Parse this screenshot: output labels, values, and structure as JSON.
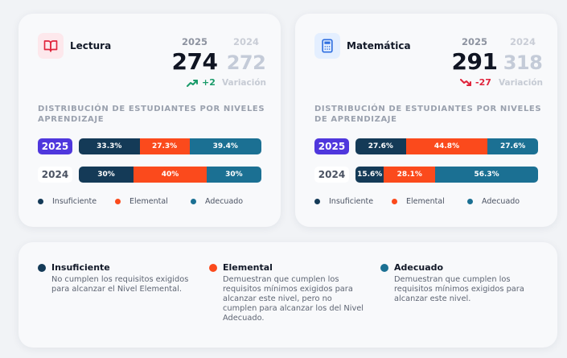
{
  "lectura": {
    "title": "Lectura",
    "icon": "book-icon",
    "year_current": "2025",
    "year_previous": "2024",
    "score_current": "274",
    "score_previous": "272",
    "delta": "+2",
    "delta_direction": "up",
    "delta_color": "#1a9b6a",
    "variation_label": "Variación",
    "distribution_title": "DISTRIBUCIÓN DE ESTUDIANTES POR NIVELES APRENDIZAJE",
    "rows": [
      {
        "year": "2025",
        "insuficiente": "33.3%",
        "elemental": "27.3%",
        "adecuado": "39.4%"
      },
      {
        "year": "2024",
        "insuficiente": "30%",
        "elemental": "40%",
        "adecuado": "30%"
      }
    ],
    "row_values": [
      {
        "insuficiente": 33.3,
        "elemental": 27.3,
        "adecuado": 39.4
      },
      {
        "insuficiente": 30,
        "elemental": 40,
        "adecuado": 30
      }
    ]
  },
  "matematica": {
    "title": "Matemática",
    "icon": "calculator-icon",
    "year_current": "2025",
    "year_previous": "2024",
    "score_current": "291",
    "score_previous": "318",
    "delta": "-27",
    "delta_direction": "down",
    "delta_color": "#e0243c",
    "variation_label": "Variación",
    "distribution_title": "DISTRIBUCIÓN DE ESTUDIANTES POR NIVELES DE APRENDIZAJE",
    "rows": [
      {
        "year": "2025",
        "insuficiente": "27.6%",
        "elemental": "44.8%",
        "adecuado": "27.6%"
      },
      {
        "year": "2024",
        "insuficiente": "15.6%",
        "elemental": "28.1%",
        "adecuado": "56.3%"
      }
    ],
    "row_values": [
      {
        "insuficiente": 27.6,
        "elemental": 44.8,
        "adecuado": 27.6
      },
      {
        "insuficiente": 15.6,
        "elemental": 28.1,
        "adecuado": 56.3
      }
    ]
  },
  "legend_short": {
    "insuficiente": "Insuficiente",
    "elemental": "Elemental",
    "adecuado": "Adecuado"
  },
  "levels": [
    {
      "name": "Insuficiente",
      "description": "No cumplen los requisitos exigidos para alcanzar el Nivel Elemental.",
      "color": "#143a57"
    },
    {
      "name": "Elemental",
      "description": "Demuestran que cumplen los requisitos mínimos exigidos para alcanzar este nivel, pero no cumplen para alcanzar los del Nivel Adecuado.",
      "color": "#fb4a1c"
    },
    {
      "name": "Adecuado",
      "description": "Demuestran que cumplen los requisitos mínimos exigidos para alcanzar este nivel.",
      "color": "#1b7093"
    }
  ],
  "colors": {
    "insuficiente": "#143a57",
    "elemental": "#fb4a1c",
    "adecuado": "#1b7093",
    "year_badge": "#4f37dd"
  }
}
